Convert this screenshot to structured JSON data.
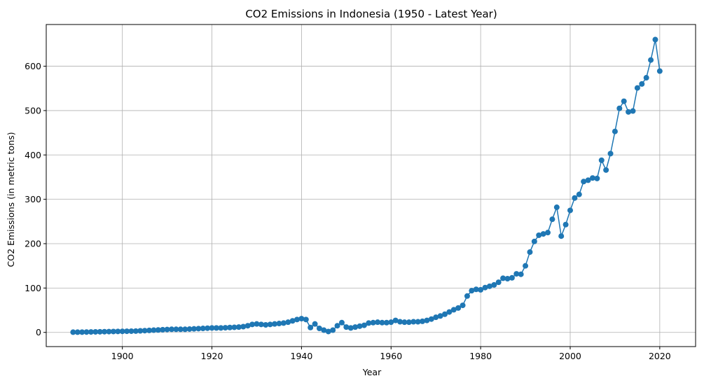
{
  "chart_data": {
    "type": "line",
    "title": "CO2 Emissions in Indonesia (1950 - Latest Year)",
    "xlabel": "Year",
    "ylabel": "CO2 Emissions (in metric tons)",
    "xlim": [
      1883,
      2028
    ],
    "ylim": [
      -32,
      694
    ],
    "x_ticks": [
      1900,
      1920,
      1940,
      1960,
      1980,
      2000,
      2020
    ],
    "y_ticks": [
      0,
      100,
      200,
      300,
      400,
      500,
      600
    ],
    "grid": true,
    "legend": "none",
    "series": [
      {
        "color": "#1f77b4",
        "marker": "circle",
        "x": [
          1889,
          1890,
          1891,
          1892,
          1893,
          1894,
          1895,
          1896,
          1897,
          1898,
          1899,
          1900,
          1901,
          1902,
          1903,
          1904,
          1905,
          1906,
          1907,
          1908,
          1909,
          1910,
          1911,
          1912,
          1913,
          1914,
          1915,
          1916,
          1917,
          1918,
          1919,
          1920,
          1921,
          1922,
          1923,
          1924,
          1925,
          1926,
          1927,
          1928,
          1929,
          1930,
          1931,
          1932,
          1933,
          1934,
          1935,
          1936,
          1937,
          1938,
          1939,
          1940,
          1941,
          1942,
          1943,
          1944,
          1945,
          1946,
          1947,
          1948,
          1949,
          1950,
          1951,
          1952,
          1953,
          1954,
          1955,
          1956,
          1957,
          1958,
          1959,
          1960,
          1961,
          1962,
          1963,
          1964,
          1965,
          1966,
          1967,
          1968,
          1969,
          1970,
          1971,
          1972,
          1973,
          1974,
          1975,
          1976,
          1977,
          1978,
          1979,
          1980,
          1981,
          1982,
          1983,
          1984,
          1985,
          1986,
          1987,
          1988,
          1989,
          1990,
          1991,
          1992,
          1993,
          1994,
          1995,
          1996,
          1997,
          1998,
          1999,
          2000,
          2001,
          2002,
          2003,
          2004,
          2005,
          2006,
          2007,
          2008,
          2009,
          2010,
          2011,
          2012,
          2013,
          2014,
          2015,
          2016,
          2017,
          2018,
          2019,
          2020
        ],
        "values": [
          0.5,
          0.5,
          0.6,
          0.8,
          1,
          1.2,
          1.4,
          1.6,
          1.8,
          2,
          2.2,
          2.4,
          2.6,
          2.8,
          3,
          3.5,
          4,
          4.5,
          5,
          5.5,
          6,
          6.5,
          7,
          7,
          7,
          7,
          7.5,
          8,
          8.5,
          9,
          9.5,
          10,
          10,
          10,
          10.5,
          11,
          11.5,
          12,
          13,
          15,
          18,
          19,
          18,
          17,
          18,
          19,
          20,
          21,
          23,
          26,
          29,
          31,
          29,
          11,
          19,
          9,
          5,
          2,
          5,
          15,
          22,
          12,
          10,
          12,
          14,
          16,
          21,
          22,
          23,
          22,
          22,
          23,
          27,
          24,
          23,
          23,
          24,
          24,
          25,
          27,
          30,
          34,
          37,
          41,
          46,
          51,
          55,
          61,
          82,
          94,
          97,
          96,
          101,
          104,
          107,
          113,
          122,
          121,
          123,
          132,
          131,
          150,
          181,
          205,
          219,
          222,
          225,
          255,
          282,
          217,
          243,
          275,
          303,
          311,
          340,
          343,
          348,
          347,
          388,
          366,
          403,
          453,
          505,
          521,
          497,
          499,
          551,
          560,
          574,
          614,
          660,
          589
        ]
      }
    ]
  }
}
